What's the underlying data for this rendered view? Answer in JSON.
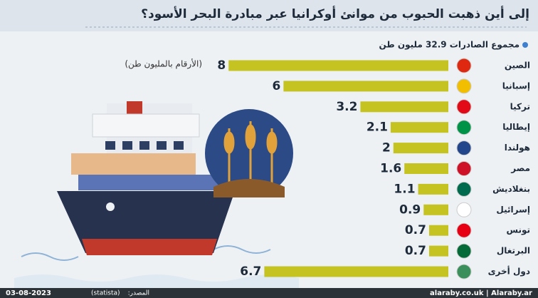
{
  "chart_data": {
    "type": "bar",
    "orientation": "horizontal",
    "title": "إلى أين ذهبت الحبوب من موانئ أوكرانيا عبر مبادرة البحر الأسود؟",
    "subtitle": "مجموع الصادرات 32.9 مليون طن",
    "note": "(الأرقام بالمليون طن)",
    "categories": [
      "الصين",
      "إسبانيا",
      "تركيا",
      "إيطاليا",
      "هولندا",
      "مصر",
      "بنغلاديش",
      "إسرائيل",
      "تونس",
      "البرتغال",
      "دول أخرى"
    ],
    "values": [
      8,
      6,
      3.2,
      2.1,
      2,
      1.6,
      1.1,
      0.9,
      0.7,
      0.7,
      6.7
    ],
    "color": "#c5c321"
  },
  "footer": {
    "date": "03-08-2023",
    "source_label": "المصدر:",
    "source": "(statista)",
    "site": "alaraby.co.uk | Alaraby.ar"
  }
}
